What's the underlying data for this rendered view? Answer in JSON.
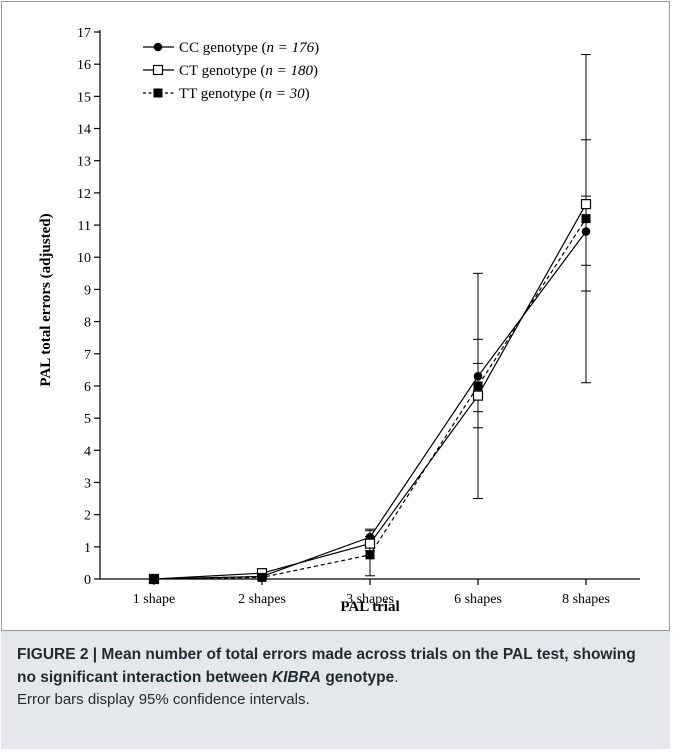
{
  "chart_data": {
    "type": "line",
    "categories": [
      "1 shape",
      "2 shapes",
      "3 shapes",
      "6 shapes",
      "8 shapes"
    ],
    "xlabel": "PAL trial",
    "ylabel": "PAL total errors  (adjusted)",
    "ylim": [
      0,
      17
    ],
    "yticks": [
      0,
      1,
      2,
      3,
      4,
      5,
      6,
      7,
      8,
      9,
      10,
      11,
      12,
      13,
      14,
      15,
      16,
      17
    ],
    "legend_position": "top-left",
    "series": [
      {
        "name": "CC genotype",
        "n": "176",
        "marker": "filled-circle",
        "line": "solid",
        "values": [
          0.0,
          0.08,
          1.3,
          6.3,
          10.8
        ],
        "ci_low": [
          0.0,
          0.02,
          1.05,
          5.2,
          9.75
        ],
        "ci_high": [
          0.0,
          0.14,
          1.55,
          7.45,
          11.9
        ]
      },
      {
        "name": "CT genotype",
        "n": "180",
        "marker": "open-square",
        "line": "solid",
        "values": [
          0.0,
          0.18,
          1.1,
          5.7,
          11.65
        ],
        "ci_low": [
          0.0,
          0.1,
          0.88,
          4.7,
          8.95
        ],
        "ci_high": [
          0.0,
          0.26,
          1.32,
          6.7,
          13.65
        ]
      },
      {
        "name": "TT genotype",
        "n": "30",
        "marker": "filled-square",
        "line": "dashed",
        "values": [
          0.0,
          0.05,
          0.75,
          6.0,
          11.2
        ],
        "ci_low": [
          0.0,
          0.0,
          0.1,
          2.5,
          6.1
        ],
        "ci_high": [
          0.0,
          0.12,
          1.5,
          9.5,
          16.3
        ]
      }
    ]
  },
  "legend": {
    "cc_prefix": "CC genotype (",
    "ct_prefix": "CT genotype (",
    "tt_prefix": "TT genotype (",
    "n_label": "n = ",
    "suffix": ")"
  },
  "caption": {
    "figure_label": "FIGURE 2 | Mean number of total errors made across trials on the PAL test, showing no significant interaction between ",
    "gene": "KIBRA",
    "after_gene": " genotype",
    "period": ".",
    "note": "Error bars display 95% confidence intervals."
  }
}
